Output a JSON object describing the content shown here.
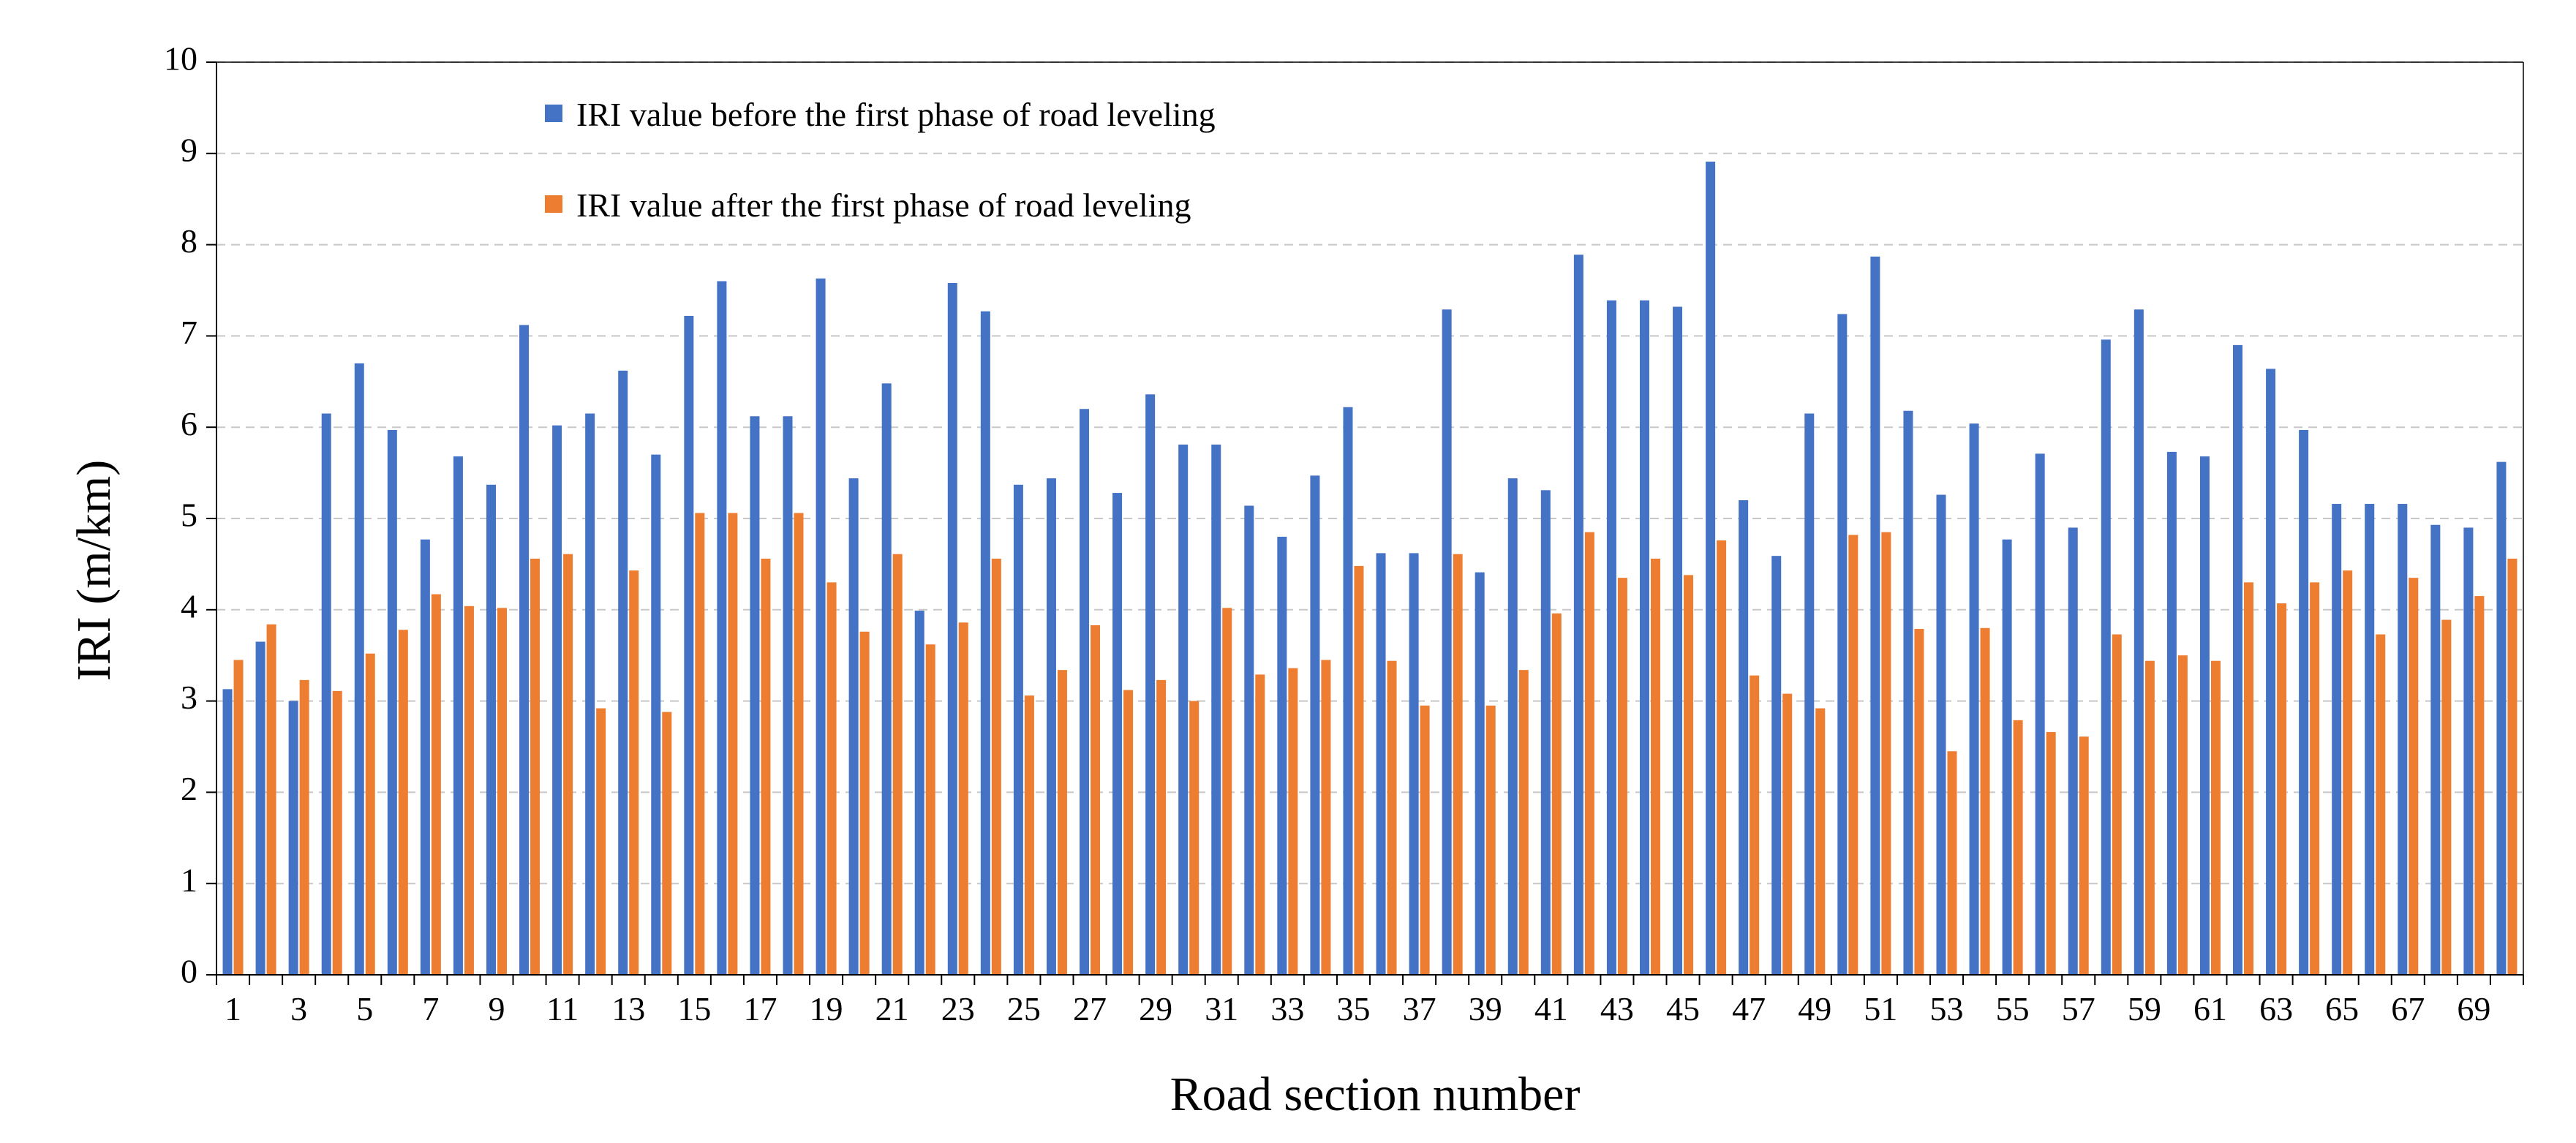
{
  "chart_data": {
    "type": "bar",
    "title": "",
    "xlabel": "Road section number",
    "ylabel": "IRI (m/km)",
    "ylim": [
      0,
      10
    ],
    "yticks": [
      "0",
      "1",
      "2",
      "3",
      "4",
      "5",
      "6",
      "7",
      "8",
      "9",
      "10"
    ],
    "grid": true,
    "legend_position": "top-center",
    "x_tick_labels": [
      "1",
      "3",
      "5",
      "7",
      "9",
      "11",
      "13",
      "15",
      "17",
      "19",
      "21",
      "23",
      "25",
      "27",
      "29",
      "31",
      "33",
      "35",
      "37",
      "39",
      "41",
      "43",
      "45",
      "47",
      "49",
      "51",
      "53",
      "55",
      "57",
      "59",
      "61",
      "63",
      "65",
      "67",
      "69"
    ],
    "categories": [
      "1",
      "2",
      "3",
      "4",
      "5",
      "6",
      "7",
      "8",
      "9",
      "10",
      "11",
      "12",
      "13",
      "14",
      "15",
      "16",
      "17",
      "18",
      "19",
      "20",
      "21",
      "22",
      "23",
      "24",
      "25",
      "26",
      "27",
      "28",
      "29",
      "30",
      "31",
      "32",
      "33",
      "34",
      "35",
      "36",
      "37",
      "38",
      "39",
      "40",
      "41",
      "42",
      "43",
      "44",
      "45",
      "46",
      "47",
      "48",
      "49",
      "50",
      "51",
      "52",
      "53",
      "54",
      "55",
      "56",
      "57",
      "58",
      "59",
      "60",
      "61",
      "62",
      "63",
      "64",
      "65",
      "66",
      "67",
      "68",
      "69",
      "70"
    ],
    "series": [
      {
        "name": "IRI value before the first phase of road leveling",
        "color": "#4472c4",
        "values": [
          3.13,
          3.65,
          3.0,
          6.15,
          6.7,
          5.97,
          4.77,
          5.68,
          5.37,
          7.12,
          6.02,
          6.15,
          6.62,
          5.7,
          7.22,
          7.6,
          6.12,
          6.12,
          7.63,
          5.44,
          6.48,
          3.99,
          7.58,
          7.27,
          5.37,
          5.44,
          6.2,
          5.28,
          6.36,
          5.81,
          5.81,
          5.14,
          4.8,
          5.47,
          6.22,
          4.62,
          4.62,
          7.29,
          4.41,
          5.44,
          5.31,
          7.89,
          7.39,
          7.39,
          7.32,
          8.91,
          5.2,
          4.59,
          6.15,
          7.24,
          7.87,
          6.18,
          5.26,
          6.04,
          4.77,
          5.71,
          4.9,
          6.96,
          7.29,
          5.73,
          5.68,
          6.9,
          6.64,
          5.97,
          5.16,
          5.16,
          5.16,
          4.93,
          4.9,
          5.62
        ]
      },
      {
        "name": "IRI value after the first phase of road leveling",
        "color": "#ed7d31",
        "values": [
          3.45,
          3.84,
          3.23,
          3.11,
          3.52,
          3.78,
          4.17,
          4.04,
          4.02,
          4.56,
          4.61,
          2.92,
          4.43,
          2.88,
          5.06,
          5.06,
          4.56,
          5.06,
          4.3,
          3.76,
          4.61,
          3.62,
          3.86,
          4.56,
          3.06,
          3.34,
          3.83,
          3.12,
          3.23,
          3.0,
          4.02,
          3.29,
          3.36,
          3.45,
          4.48,
          3.44,
          2.95,
          4.61,
          2.95,
          3.34,
          3.96,
          4.85,
          4.35,
          4.56,
          4.38,
          4.76,
          3.28,
          3.08,
          2.92,
          4.82,
          4.85,
          3.79,
          2.45,
          3.8,
          2.79,
          2.66,
          2.61,
          3.73,
          3.44,
          3.5,
          3.44,
          4.3,
          4.07,
          4.3,
          4.43,
          3.73,
          4.35,
          3.89,
          4.15,
          4.56
        ]
      }
    ]
  }
}
